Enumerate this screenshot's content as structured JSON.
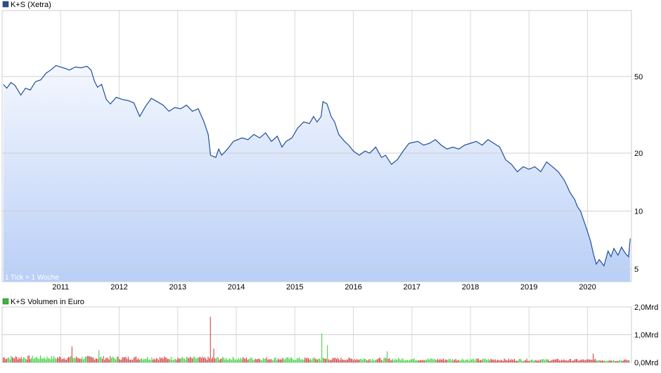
{
  "price_panel": {
    "legend": "K+S (Xetra)",
    "note": "1 Tick = 1 Woche",
    "series_color": "#1f4e9c",
    "legend_color": "#2a4f8f"
  },
  "volume_panel": {
    "legend": "K+S Volumen in Euro",
    "legend_color": "#3cb33c",
    "up_color": "#33cc33",
    "down_color": "#cc3333"
  },
  "chart_data": [
    {
      "type": "area",
      "title": "K+S (Xetra)",
      "scale": "log",
      "grid": true,
      "y_ticks": [
        {
          "value": 50,
          "label": "50"
        },
        {
          "value": 20,
          "label": "20"
        },
        {
          "value": 10,
          "label": "10"
        },
        {
          "value": 5,
          "label": "5"
        }
      ],
      "x_ticks": [
        {
          "value": 2011,
          "label": "2011"
        },
        {
          "value": 2012,
          "label": "2012"
        },
        {
          "value": 2013,
          "label": "2013"
        },
        {
          "value": 2014,
          "label": "2014"
        },
        {
          "value": 2015,
          "label": "2015"
        },
        {
          "value": 2016,
          "label": "2016"
        },
        {
          "value": 2017,
          "label": "2017"
        },
        {
          "value": 2018,
          "label": "2018"
        },
        {
          "value": 2019,
          "label": "2019"
        },
        {
          "value": 2020,
          "label": "2020"
        }
      ],
      "xlim": [
        2010.0,
        2020.75
      ],
      "ylim": [
        4.3,
        110
      ],
      "series": [
        {
          "name": "K+S (Xetra)",
          "points": [
            [
              2010.02,
              45.5
            ],
            [
              2010.08,
              43.5
            ],
            [
              2010.15,
              46.5
            ],
            [
              2010.22,
              45.0
            ],
            [
              2010.32,
              40.0
            ],
            [
              2010.4,
              43.5
            ],
            [
              2010.48,
              42.5
            ],
            [
              2010.57,
              47.0
            ],
            [
              2010.66,
              48.0
            ],
            [
              2010.75,
              52.0
            ],
            [
              2010.83,
              54.0
            ],
            [
              2010.92,
              57.0
            ],
            [
              2011.0,
              56.0
            ],
            [
              2011.08,
              55.0
            ],
            [
              2011.15,
              54.0
            ],
            [
              2011.25,
              56.0
            ],
            [
              2011.35,
              55.5
            ],
            [
              2011.45,
              56.5
            ],
            [
              2011.52,
              54.0
            ],
            [
              2011.58,
              47.0
            ],
            [
              2011.63,
              44.0
            ],
            [
              2011.7,
              45.5
            ],
            [
              2011.78,
              38.0
            ],
            [
              2011.85,
              36.0
            ],
            [
              2011.95,
              39.0
            ],
            [
              2012.05,
              38.0
            ],
            [
              2012.15,
              37.5
            ],
            [
              2012.25,
              36.5
            ],
            [
              2012.35,
              31.0
            ],
            [
              2012.45,
              35.0
            ],
            [
              2012.55,
              38.5
            ],
            [
              2012.65,
              37.0
            ],
            [
              2012.75,
              35.5
            ],
            [
              2012.85,
              33.0
            ],
            [
              2012.95,
              34.5
            ],
            [
              2013.05,
              34.0
            ],
            [
              2013.15,
              35.5
            ],
            [
              2013.25,
              33.0
            ],
            [
              2013.35,
              34.0
            ],
            [
              2013.45,
              29.0
            ],
            [
              2013.52,
              25.0
            ],
            [
              2013.56,
              19.5
            ],
            [
              2013.65,
              19.0
            ],
            [
              2013.7,
              21.0
            ],
            [
              2013.75,
              19.5
            ],
            [
              2013.85,
              21.0
            ],
            [
              2013.95,
              23.0
            ],
            [
              2014.1,
              24.0
            ],
            [
              2014.2,
              23.5
            ],
            [
              2014.3,
              25.0
            ],
            [
              2014.4,
              24.0
            ],
            [
              2014.5,
              25.5
            ],
            [
              2014.6,
              23.0
            ],
            [
              2014.7,
              24.5
            ],
            [
              2014.78,
              21.5
            ],
            [
              2014.85,
              23.0
            ],
            [
              2014.95,
              24.0
            ],
            [
              2015.05,
              27.0
            ],
            [
              2015.15,
              29.0
            ],
            [
              2015.25,
              28.5
            ],
            [
              2015.32,
              31.0
            ],
            [
              2015.38,
              29.0
            ],
            [
              2015.45,
              31.0
            ],
            [
              2015.48,
              37.0
            ],
            [
              2015.55,
              36.0
            ],
            [
              2015.62,
              31.0
            ],
            [
              2015.68,
              29.0
            ],
            [
              2015.75,
              25.0
            ],
            [
              2015.85,
              23.0
            ],
            [
              2015.92,
              22.0
            ],
            [
              2016.0,
              20.5
            ],
            [
              2016.1,
              19.5
            ],
            [
              2016.2,
              20.5
            ],
            [
              2016.28,
              20.0
            ],
            [
              2016.38,
              21.5
            ],
            [
              2016.48,
              19.0
            ],
            [
              2016.55,
              19.5
            ],
            [
              2016.65,
              17.5
            ],
            [
              2016.75,
              18.5
            ],
            [
              2016.85,
              20.5
            ],
            [
              2016.95,
              22.5
            ],
            [
              2017.1,
              23.0
            ],
            [
              2017.2,
              22.0
            ],
            [
              2017.3,
              22.5
            ],
            [
              2017.4,
              23.5
            ],
            [
              2017.5,
              22.0
            ],
            [
              2017.6,
              21.0
            ],
            [
              2017.7,
              21.5
            ],
            [
              2017.8,
              21.0
            ],
            [
              2017.9,
              22.0
            ],
            [
              2018.0,
              22.5
            ],
            [
              2018.1,
              23.0
            ],
            [
              2018.2,
              22.0
            ],
            [
              2018.3,
              23.5
            ],
            [
              2018.4,
              22.5
            ],
            [
              2018.5,
              21.5
            ],
            [
              2018.6,
              18.5
            ],
            [
              2018.7,
              17.5
            ],
            [
              2018.8,
              16.0
            ],
            [
              2018.9,
              17.0
            ],
            [
              2019.0,
              16.5
            ],
            [
              2019.1,
              17.0
            ],
            [
              2019.2,
              16.0
            ],
            [
              2019.3,
              18.0
            ],
            [
              2019.4,
              17.0
            ],
            [
              2019.5,
              16.0
            ],
            [
              2019.6,
              14.5
            ],
            [
              2019.65,
              13.5
            ],
            [
              2019.7,
              12.5
            ],
            [
              2019.78,
              11.5
            ],
            [
              2019.83,
              10.5
            ],
            [
              2019.88,
              10.0
            ],
            [
              2019.92,
              9.2
            ],
            [
              2019.96,
              8.5
            ],
            [
              2020.0,
              7.8
            ],
            [
              2020.05,
              7.0
            ],
            [
              2020.1,
              6.0
            ],
            [
              2020.15,
              5.3
            ],
            [
              2020.2,
              5.6
            ],
            [
              2020.28,
              5.2
            ],
            [
              2020.35,
              6.2
            ],
            [
              2020.4,
              5.8
            ],
            [
              2020.45,
              6.4
            ],
            [
              2020.52,
              5.9
            ],
            [
              2020.58,
              6.5
            ],
            [
              2020.65,
              6.0
            ],
            [
              2020.7,
              5.8
            ],
            [
              2020.73,
              7.2
            ]
          ]
        }
      ]
    },
    {
      "type": "bar",
      "title": "K+S Volumen in Euro",
      "grid": true,
      "unit": "Mrd",
      "y_ticks": [
        {
          "value": 2.0,
          "label": "2,0Mrd"
        },
        {
          "value": 1.0,
          "label": "1,0Mrd"
        },
        {
          "value": 0.0,
          "label": "0,0Mrd"
        }
      ],
      "ylim": [
        0,
        2.0
      ],
      "xlim": [
        2010.0,
        2020.75
      ],
      "baseline_range": [
        0.1,
        0.26
      ],
      "spikes": [
        {
          "x": 2011.2,
          "value": 0.58,
          "direction": "down"
        },
        {
          "x": 2011.65,
          "value": 0.44,
          "direction": "up"
        },
        {
          "x": 2013.56,
          "value": 1.65,
          "direction": "down"
        },
        {
          "x": 2013.62,
          "value": 0.5,
          "direction": "down"
        },
        {
          "x": 2015.47,
          "value": 1.05,
          "direction": "up"
        },
        {
          "x": 2015.55,
          "value": 0.62,
          "direction": "up"
        },
        {
          "x": 2016.58,
          "value": 0.4,
          "direction": "up"
        },
        {
          "x": 2020.1,
          "value": 0.32,
          "direction": "down"
        }
      ]
    }
  ]
}
